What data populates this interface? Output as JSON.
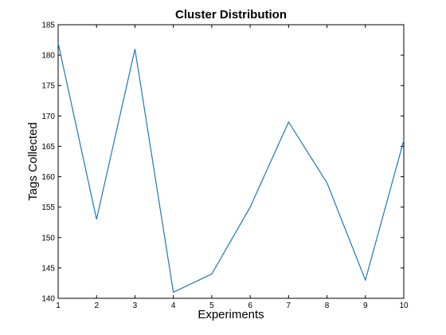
{
  "chart_data": {
    "type": "line",
    "title": "Cluster Distribution",
    "xlabel": "Experiments",
    "ylabel": "Tags Collected",
    "xlim": [
      1,
      10
    ],
    "ylim": [
      140,
      185
    ],
    "xticks": [
      1,
      2,
      3,
      4,
      5,
      6,
      7,
      8,
      9,
      10
    ],
    "yticks": [
      140,
      145,
      150,
      155,
      160,
      165,
      170,
      175,
      180,
      185
    ],
    "grid": false,
    "series": [
      {
        "color": "#1f77b4",
        "x": [
          1,
          2,
          3,
          4,
          5,
          6,
          7,
          8,
          9,
          10
        ],
        "y": [
          182,
          153,
          181,
          141,
          144,
          155,
          169,
          159,
          143,
          166
        ]
      }
    ]
  }
}
